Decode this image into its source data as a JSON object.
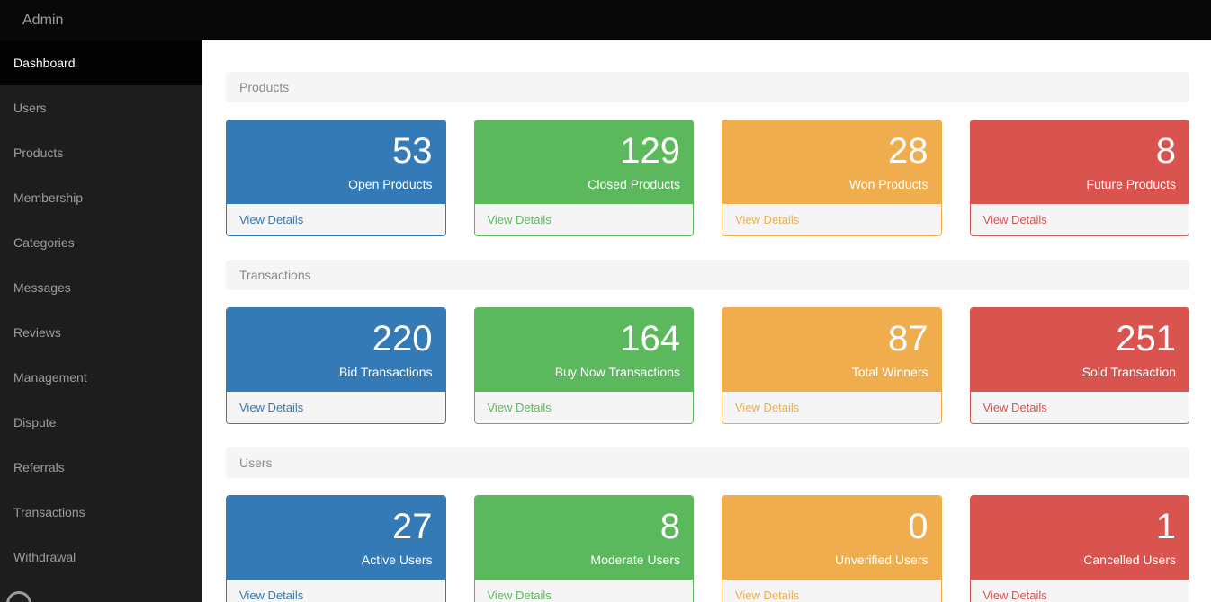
{
  "topbar": {
    "title": "Admin"
  },
  "sidebar": {
    "items": [
      {
        "label": "Dashboard",
        "active": true
      },
      {
        "label": "Users",
        "active": false
      },
      {
        "label": "Products",
        "active": false
      },
      {
        "label": "Membership",
        "active": false
      },
      {
        "label": "Categories",
        "active": false
      },
      {
        "label": "Messages",
        "active": false
      },
      {
        "label": "Reviews",
        "active": false
      },
      {
        "label": "Management",
        "active": false
      },
      {
        "label": "Dispute",
        "active": false
      },
      {
        "label": "Referrals",
        "active": false
      },
      {
        "label": "Transactions",
        "active": false
      },
      {
        "label": "Withdrawal",
        "active": false
      }
    ]
  },
  "colors": {
    "blue": "#337ab7",
    "green": "#5cb85c",
    "orange": "#f0ad4e",
    "red": "#d9534f"
  },
  "sections": [
    {
      "title": "Products",
      "cards": [
        {
          "value": "53",
          "label": "Open Products",
          "link": "View Details",
          "color": "blue"
        },
        {
          "value": "129",
          "label": "Closed Products",
          "link": "View Details",
          "color": "green"
        },
        {
          "value": "28",
          "label": "Won Products",
          "link": "View Details",
          "color": "orange"
        },
        {
          "value": "8",
          "label": "Future Products",
          "link": "View Details",
          "color": "red"
        }
      ]
    },
    {
      "title": "Transactions",
      "cards": [
        {
          "value": "220",
          "label": "Bid Transactions",
          "link": "View Details",
          "color": "blue"
        },
        {
          "value": "164",
          "label": "Buy Now Transactions",
          "link": "View Details",
          "color": "green"
        },
        {
          "value": "87",
          "label": "Total Winners",
          "link": "View Details",
          "color": "orange"
        },
        {
          "value": "251",
          "label": "Sold Transaction",
          "link": "View Details",
          "color": "red"
        }
      ]
    },
    {
      "title": "Users",
      "cards": [
        {
          "value": "27",
          "label": "Active Users",
          "link": "View Details",
          "color": "blue"
        },
        {
          "value": "8",
          "label": "Moderate Users",
          "link": "View Details",
          "color": "green"
        },
        {
          "value": "0",
          "label": "Unverified Users",
          "link": "View Details",
          "color": "orange"
        },
        {
          "value": "1",
          "label": "Cancelled Users",
          "link": "View Details",
          "color": "red"
        }
      ]
    }
  ]
}
